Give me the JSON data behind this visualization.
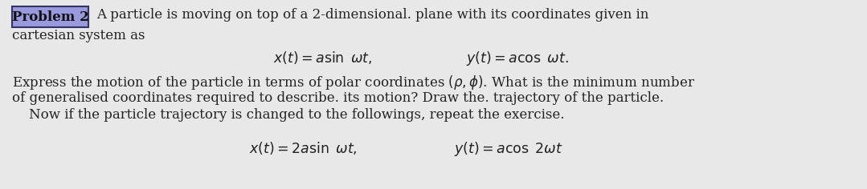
{
  "background_color": "#e8e8e8",
  "box_label": "Problem 2",
  "box_facecolor": "#9999dd",
  "box_edgecolor": "#333366",
  "box_textcolor": "#111111",
  "text_color": "#222222",
  "font_size": 12.0,
  "math_font_size": 12.5,
  "line1_text": "A particle is moving on top of a 2-dimensional. plane with its coordinates given in",
  "line2": "cartesian system as",
  "eq1_left": "$x(t) = a\\sin\\ \\omega t,$",
  "eq1_right": "$y(t) = a\\cos\\ \\omega t.$",
  "para1_line1": "Express the motion of the particle in terms of polar coordinates $(\\rho, \\phi)$. What is the minimum number",
  "para1_line2": "of generalised coordinates required to describe. its motion? Draw the. trajectory of the particle.",
  "para1_line3": "    Now if the particle trajectory is changed to the followings, repeat the exercise.",
  "eq2_left": "$x(t) = 2a\\sin\\ \\omega t,$",
  "eq2_right": "$y(t) = a\\cos\\ 2\\omega t$"
}
